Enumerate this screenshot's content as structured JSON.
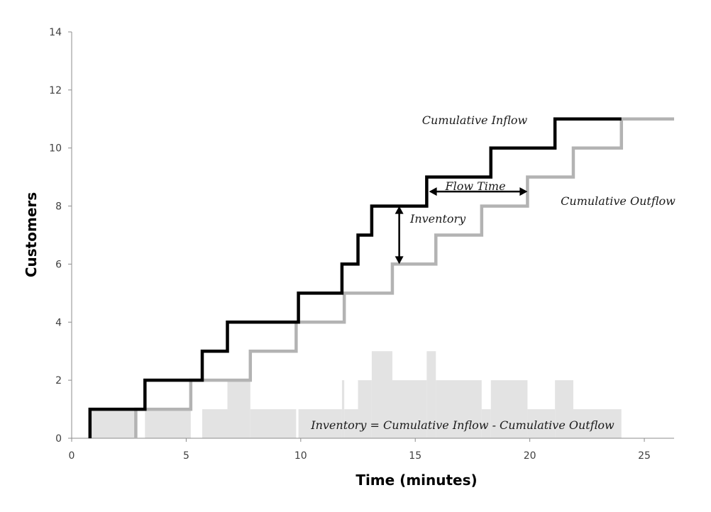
{
  "chart_data": {
    "type": "line",
    "title": "",
    "xlabel": "Time (minutes)",
    "ylabel": "Customers",
    "xlim": [
      0,
      26.3
    ],
    "ylim": [
      0,
      14
    ],
    "xticks": [
      "0",
      "5",
      "10",
      "15",
      "20",
      "25"
    ],
    "yticks": [
      "0",
      "2",
      "4",
      "6",
      "8",
      "10",
      "12",
      "14"
    ],
    "grid": false,
    "colors": {
      "inflow": "#000000",
      "outflow": "#b3b3b3",
      "inventory_fill": "#e3e3e3",
      "arrow": "#000000"
    },
    "series": [
      {
        "name": "Cumulative Inflow",
        "step": "post",
        "x": [
          0.8,
          3.2,
          5.7,
          6.8,
          9.9,
          11.8,
          12.5,
          13.1,
          15.5,
          18.3,
          21.1,
          24.0
        ],
        "y": [
          1,
          2,
          3,
          4,
          5,
          6,
          7,
          8,
          9,
          10,
          11,
          11
        ]
      },
      {
        "name": "Cumulative Outflow",
        "step": "post",
        "x": [
          2.8,
          5.2,
          7.8,
          9.8,
          11.9,
          14.0,
          15.9,
          17.9,
          19.9,
          21.9,
          24.0,
          26.3
        ],
        "y": [
          1,
          2,
          3,
          4,
          5,
          6,
          7,
          8,
          9,
          10,
          11,
          11
        ]
      }
    ],
    "inventory": {
      "x": [
        0.8,
        2.8,
        3.2,
        5.2,
        5.7,
        6.8,
        7.8,
        9.8,
        9.9,
        11.8,
        11.9,
        12.5,
        13.1,
        14.0,
        15.5,
        15.9,
        17.9,
        18.3,
        19.9,
        21.1,
        21.9,
        24.0
      ],
      "y": [
        1,
        0,
        1,
        0,
        1,
        2,
        1,
        0,
        1,
        2,
        1,
        2,
        3,
        2,
        3,
        2,
        1,
        2,
        1,
        2,
        1,
        0
      ]
    },
    "annotations": {
      "inflow_label": "Cumulative Inflow",
      "outflow_label": "Cumulative Outflow",
      "flow_time_label": "Flow Time",
      "inventory_label": "Inventory",
      "equation": "Inventory = Cumulative Inflow - Cumulative Outflow"
    }
  }
}
